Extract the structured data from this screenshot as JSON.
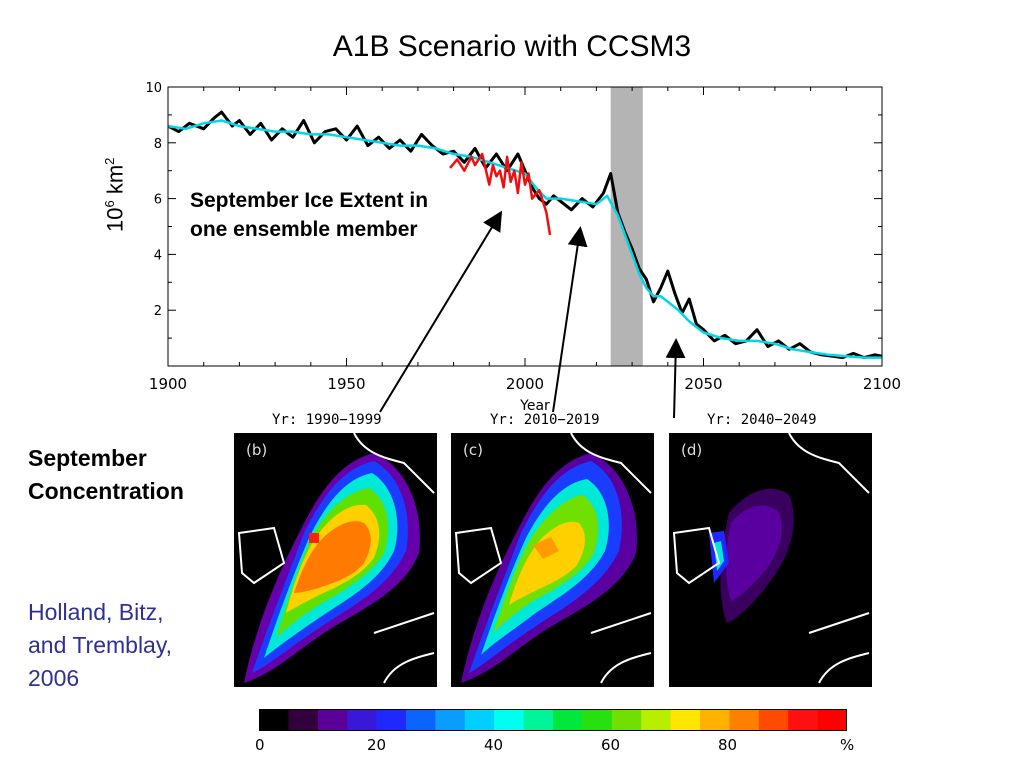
{
  "title": "A1B Scenario with CCSM3",
  "ylabel_base": "10",
  "ylabel_exp": "6",
  "ylabel_unit": " km",
  "ylabel_unit_exp": "2",
  "annotation_lines": [
    "September Ice Extent in",
    "one ensemble member"
  ],
  "side_label_lines": [
    "September",
    "Concentration"
  ],
  "citation_lines": [
    "Holland, Bitz,",
    "and Tremblay,",
    "2006"
  ],
  "maps": [
    {
      "label": "Yr: 1990−1999",
      "tag": "(b)"
    },
    {
      "label": "Yr: 2010−2019",
      "tag": "(c)"
    },
    {
      "label": "Yr: 2040−2049",
      "tag": "(d)"
    }
  ],
  "colorbar": {
    "colors": [
      "#000000",
      "#32003a",
      "#5a0099",
      "#3a18d8",
      "#1e28ff",
      "#0a64ff",
      "#0a9cff",
      "#00cfff",
      "#00ffee",
      "#00f59a",
      "#00e83c",
      "#28e010",
      "#70e000",
      "#b8ee00",
      "#ffe600",
      "#ffb300",
      "#ff8000",
      "#ff4a00",
      "#ff1010",
      "#ff0000"
    ],
    "ticks": [
      "0",
      "20",
      "40",
      "60",
      "80",
      "%"
    ]
  },
  "chart_data": {
    "type": "line",
    "xlabel": "Year",
    "ylabel": "10^6 km^2",
    "xlim": [
      1900,
      2100
    ],
    "ylim": [
      0,
      10
    ],
    "xticks": [
      1900,
      1950,
      2000,
      2050,
      2100
    ],
    "yticks": [
      2,
      4,
      6,
      8,
      10
    ],
    "shaded_band": [
      2024,
      2033
    ],
    "series": [
      {
        "color": "#000000",
        "x": [
          1900,
          1903,
          1906,
          1910,
          1913,
          1915,
          1918,
          1920,
          1923,
          1926,
          1929,
          1932,
          1935,
          1938,
          1941,
          1944,
          1947,
          1950,
          1953,
          1956,
          1959,
          1962,
          1965,
          1968,
          1971,
          1974,
          1977,
          1980,
          1983,
          1986,
          1989,
          1992,
          1995,
          1998,
          2000,
          2002,
          2004,
          2006,
          2008,
          2010,
          2013,
          2016,
          2019,
          2022,
          2024,
          2026,
          2028,
          2030,
          2032,
          2034,
          2036,
          2038,
          2040,
          2042,
          2044,
          2046,
          2048,
          2050,
          2053,
          2056,
          2059,
          2062,
          2065,
          2068,
          2071,
          2074,
          2077,
          2080,
          2083,
          2086,
          2089,
          2092,
          2095,
          2098,
          2100
        ],
        "y": [
          8.6,
          8.4,
          8.7,
          8.5,
          8.9,
          9.1,
          8.6,
          8.8,
          8.3,
          8.7,
          8.1,
          8.5,
          8.2,
          8.8,
          8.0,
          8.4,
          8.5,
          8.1,
          8.6,
          7.9,
          8.2,
          7.8,
          8.1,
          7.7,
          8.3,
          7.9,
          7.6,
          7.7,
          7.3,
          7.8,
          7.1,
          7.6,
          7.0,
          7.6,
          7.0,
          6.4,
          6.0,
          5.8,
          6.1,
          5.9,
          5.6,
          6.0,
          5.7,
          6.2,
          6.9,
          5.5,
          4.8,
          4.2,
          3.5,
          3.1,
          2.3,
          2.8,
          3.4,
          2.6,
          1.9,
          2.4,
          1.5,
          1.3,
          0.9,
          1.1,
          0.8,
          0.9,
          1.3,
          0.7,
          0.9,
          0.6,
          0.8,
          0.5,
          0.4,
          0.35,
          0.3,
          0.45,
          0.3,
          0.4,
          0.35
        ]
      },
      {
        "color": "#00d8e8",
        "x": [
          1900,
          1905,
          1910,
          1915,
          1920,
          1925,
          1930,
          1935,
          1940,
          1945,
          1950,
          1955,
          1960,
          1965,
          1970,
          1975,
          1980,
          1985,
          1990,
          1995,
          2000,
          2003,
          2006,
          2010,
          2015,
          2020,
          2023,
          2026,
          2028,
          2030,
          2032,
          2034,
          2036,
          2038,
          2040,
          2043,
          2046,
          2050,
          2055,
          2060,
          2065,
          2070,
          2075,
          2080,
          2085,
          2090,
          2095,
          2100
        ],
        "y": [
          8.6,
          8.5,
          8.7,
          8.8,
          8.6,
          8.5,
          8.4,
          8.4,
          8.3,
          8.3,
          8.2,
          8.1,
          8.0,
          7.9,
          7.9,
          7.8,
          7.6,
          7.5,
          7.3,
          7.1,
          6.9,
          6.4,
          6.0,
          6.0,
          5.9,
          5.8,
          6.1,
          5.4,
          4.7,
          4.0,
          3.3,
          2.8,
          2.5,
          2.5,
          2.3,
          2.0,
          1.6,
          1.2,
          1.0,
          0.9,
          0.9,
          0.8,
          0.6,
          0.5,
          0.4,
          0.35,
          0.3,
          0.3
        ]
      },
      {
        "color": "#ee1010",
        "x": [
          1979,
          1981,
          1983,
          1985,
          1986,
          1988,
          1990,
          1991,
          1992,
          1993,
          1994,
          1995,
          1996,
          1997,
          1998,
          1999,
          2000,
          2001,
          2002,
          2004,
          2005,
          2006,
          2007
        ],
        "y": [
          7.1,
          7.4,
          7.0,
          7.5,
          7.2,
          7.6,
          6.5,
          7.2,
          6.8,
          7.0,
          6.4,
          7.5,
          6.6,
          7.0,
          6.2,
          7.3,
          6.5,
          6.9,
          6.0,
          6.3,
          5.9,
          5.5,
          4.7
        ]
      }
    ]
  }
}
